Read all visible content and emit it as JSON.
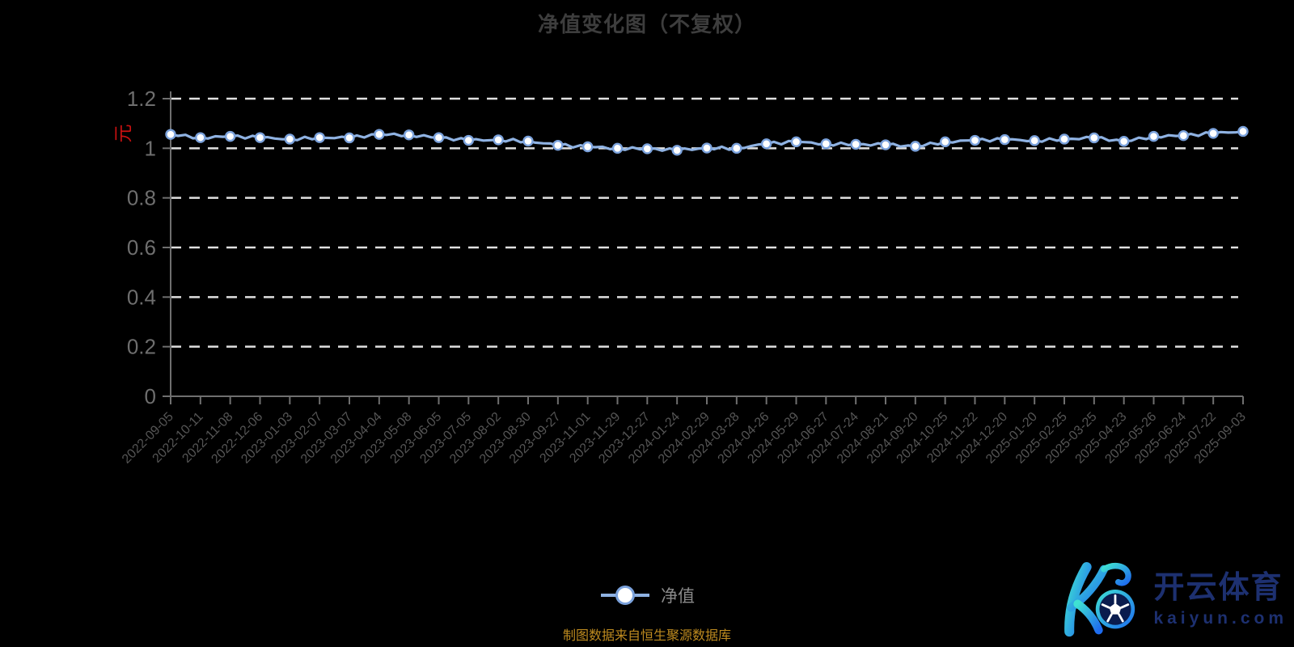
{
  "title": "净值变化图（不复权）",
  "y_axis_unit": "元",
  "legend": {
    "label": "净值"
  },
  "source_note": "制图数据来自恒生聚源数据库",
  "logo": {
    "brand_cn": "开云体育",
    "brand_domain": "kaiyun.com"
  },
  "colors": {
    "background": "#000000",
    "title": "#3d3d3d",
    "axis": "#6f6f6f",
    "grid": "#e0e0e0",
    "line": "#8fb2e2",
    "marker_fill": "#ffffff",
    "marker_stroke": "#7ba2dc",
    "unit_red": "#cc1111",
    "x_label": "#555555",
    "y_label": "#6e6e6e",
    "legend_text": "#8a8a8a",
    "source_text": "#bd8a1f",
    "logo_navy": "#1d3070",
    "logo_gradient_start": "#3fe2d2",
    "logo_gradient_end": "#1e6cf0"
  },
  "chart_data": {
    "type": "line",
    "title": "净值变化图（不复权）",
    "y_unit": "元",
    "legend_position": "bottom",
    "grid": "dashed-horizontal",
    "ylim": [
      0,
      1.2
    ],
    "yticks": [
      0,
      0.2,
      0.4,
      0.6,
      0.8,
      1,
      1.2
    ],
    "x_label_rotation": 45,
    "categories": [
      "2022-09-05",
      "2022-10-11",
      "2022-11-08",
      "2022-12-06",
      "2023-01-03",
      "2023-02-07",
      "2023-03-07",
      "2023-04-04",
      "2023-05-08",
      "2023-06-05",
      "2023-07-05",
      "2023-08-02",
      "2023-08-30",
      "2023-09-27",
      "2023-11-01",
      "2023-11-29",
      "2023-12-27",
      "2024-01-24",
      "2024-02-29",
      "2024-03-28",
      "2024-04-26",
      "2024-05-29",
      "2024-06-27",
      "2024-07-24",
      "2024-08-21",
      "2024-09-20",
      "2024-10-25",
      "2024-11-22",
      "2024-12-20",
      "2025-01-20",
      "2025-02-25",
      "2025-03-25",
      "2025-04-23",
      "2025-05-26",
      "2025-06-24",
      "2025-07-22",
      "2025-09-03"
    ],
    "series": [
      {
        "name": "净值",
        "values": [
          1.056,
          1.043,
          1.048,
          1.043,
          1.037,
          1.043,
          1.042,
          1.056,
          1.054,
          1.043,
          1.032,
          1.034,
          1.029,
          1.012,
          1.006,
          1.0,
          0.998,
          0.992,
          1.001,
          1.0,
          1.018,
          1.026,
          1.018,
          1.016,
          1.014,
          1.008,
          1.026,
          1.032,
          1.035,
          1.031,
          1.037,
          1.042,
          1.028,
          1.048,
          1.051,
          1.06,
          1.068
        ]
      }
    ]
  }
}
